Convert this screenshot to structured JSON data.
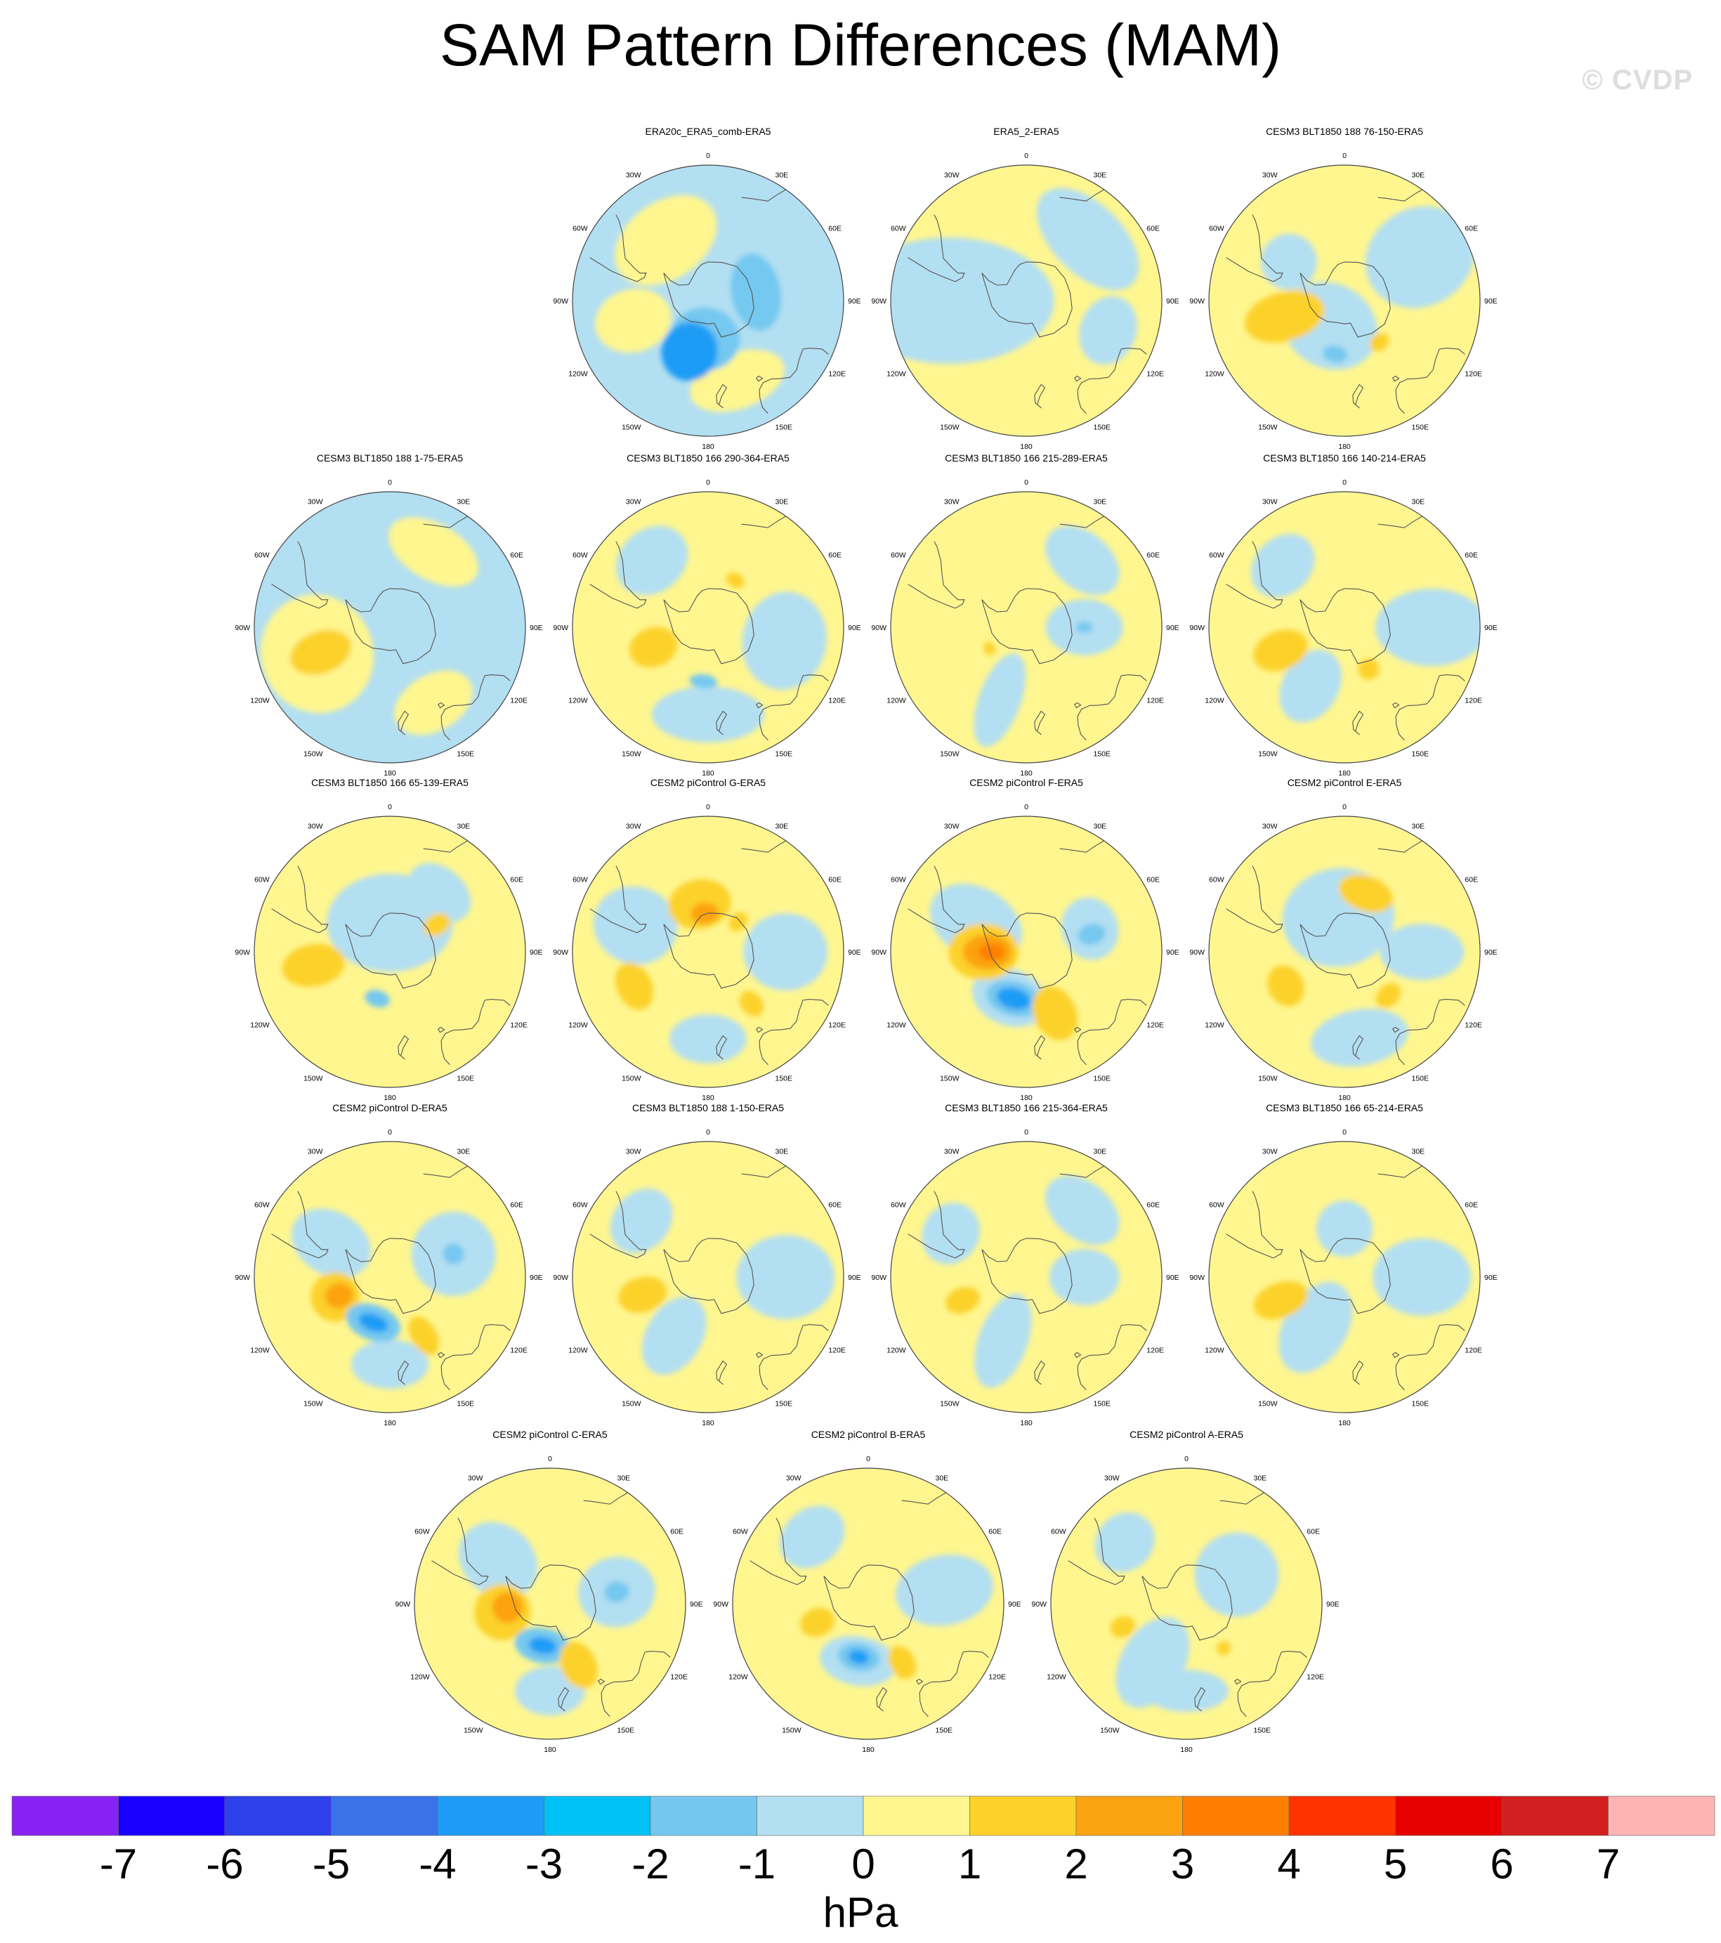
{
  "title": "SAM Pattern Differences (MAM)",
  "watermark": "© CVDP",
  "map_labels": {
    "top": "0",
    "tr1": "30E",
    "tr2": "60E",
    "right": "90E",
    "br2": "120E",
    "br1": "150E",
    "bottom": "180",
    "bl1": "150W",
    "bl2": "120W",
    "left": "90W",
    "tl2": "60W",
    "tl1": "30W"
  },
  "panels": [
    {
      "title": "ERA20c_ERA5_comb-ERA5",
      "base": "#b3dff2",
      "blobs": [
        {
          "lat": -52,
          "lon": -35,
          "rx": 80,
          "ry": 55,
          "c": "#fff68f"
        },
        {
          "lat": -50,
          "lon": -105,
          "rx": 45,
          "ry": 55,
          "c": "#fff68f"
        },
        {
          "lat": -46,
          "lon": 160,
          "rx": 70,
          "ry": 40,
          "c": "#fff68f"
        },
        {
          "lat": -70,
          "lon": -175,
          "rx": 50,
          "ry": 45,
          "c": "#74c8f0"
        },
        {
          "lat": -62,
          "lon": -160,
          "rx": 40,
          "ry": 42,
          "c": "#1e9cf5"
        },
        {
          "lat": -65,
          "lon": 80,
          "rx": 55,
          "ry": 35,
          "c": "#74c8f0"
        }
      ]
    },
    {
      "title": "ERA5_2-ERA5",
      "base": "#fff68f",
      "blobs": [
        {
          "lat": -50,
          "lon": -90,
          "rx": 90,
          "ry": 150,
          "c": "#b3dff2"
        },
        {
          "lat": -45,
          "lon": 45,
          "rx": 90,
          "ry": 50,
          "c": "#b3dff2"
        },
        {
          "lat": -45,
          "lon": 110,
          "rx": 50,
          "ry": 40,
          "c": "#b3dff2"
        }
      ]
    },
    {
      "title": "CESM3 BLT1850 188 76-150-ERA5",
      "base": "#fff68f",
      "blobs": [
        {
          "lat": -45,
          "lon": 60,
          "rx": 70,
          "ry": 80,
          "c": "#b3dff2"
        },
        {
          "lat": -75,
          "lon": -150,
          "rx": 70,
          "ry": 60,
          "c": "#b3dff2"
        },
        {
          "lat": -55,
          "lon": -55,
          "rx": 40,
          "ry": 40,
          "c": "#b3dff2"
        },
        {
          "lat": -58,
          "lon": -105,
          "rx": 35,
          "ry": 58,
          "c": "#fcd12a"
        },
        {
          "lat": -62,
          "lon": -170,
          "rx": 18,
          "ry": 12,
          "c": "#74c8f0"
        },
        {
          "lat": -62,
          "lon": 140,
          "rx": 15,
          "ry": 12,
          "c": "#fcd12a"
        }
      ]
    },
    {
      "title": "CESM3 BLT1850 188 1-75-ERA5",
      "base": "#b3dff2",
      "blobs": [
        {
          "lat": -50,
          "lon": -110,
          "rx": 85,
          "ry": 80,
          "c": "#fff68f"
        },
        {
          "lat": -45,
          "lon": 30,
          "rx": 70,
          "ry": 40,
          "c": "#fff68f"
        },
        {
          "lat": -45,
          "lon": 150,
          "rx": 60,
          "ry": 40,
          "c": "#fff68f"
        },
        {
          "lat": -52,
          "lon": -110,
          "rx": 30,
          "ry": 45,
          "c": "#fcd12a"
        }
      ]
    },
    {
      "title": "CESM3 BLT1850 166 290-364-ERA5",
      "base": "#fff68f",
      "blobs": [
        {
          "lat": -50,
          "lon": 100,
          "rx": 70,
          "ry": 60,
          "c": "#b3dff2"
        },
        {
          "lat": -45,
          "lon": 180,
          "rx": 80,
          "ry": 40,
          "c": "#b3dff2"
        },
        {
          "lat": -45,
          "lon": -40,
          "rx": 55,
          "ry": 45,
          "c": "#b3dff2"
        },
        {
          "lat": -60,
          "lon": -110,
          "rx": 28,
          "ry": 35,
          "c": "#fcd12a"
        },
        {
          "lat": -62,
          "lon": 30,
          "rx": 14,
          "ry": 10,
          "c": "#fcd12a"
        },
        {
          "lat": -62,
          "lon": -175,
          "rx": 20,
          "ry": 10,
          "c": "#74c8f0"
        }
      ]
    },
    {
      "title": "CESM3 BLT1850 166 215-289-ERA5",
      "base": "#fff68f",
      "blobs": [
        {
          "lat": -45,
          "lon": 40,
          "rx": 60,
          "ry": 40,
          "c": "#b3dff2"
        },
        {
          "lat": -60,
          "lon": 90,
          "rx": 40,
          "ry": 55,
          "c": "#b3dff2"
        },
        {
          "lat": -50,
          "lon": -160,
          "rx": 30,
          "ry": 70,
          "c": "#b3dff2"
        },
        {
          "lat": -60,
          "lon": 90,
          "rx": 8,
          "ry": 12,
          "c": "#74c8f0"
        },
        {
          "lat": -68,
          "lon": -120,
          "rx": 10,
          "ry": 8,
          "c": "#fcd12a"
        }
      ]
    },
    {
      "title": "CESM3 BLT1850 166 140-214-ERA5",
      "base": "#fff68f",
      "blobs": [
        {
          "lat": -45,
          "lon": 90,
          "rx": 55,
          "ry": 80,
          "c": "#b3dff2"
        },
        {
          "lat": -55,
          "lon": -150,
          "rx": 40,
          "ry": 55,
          "c": "#b3dff2"
        },
        {
          "lat": -45,
          "lon": -45,
          "rx": 50,
          "ry": 40,
          "c": "#b3dff2"
        },
        {
          "lat": -55,
          "lon": -110,
          "rx": 28,
          "ry": 40,
          "c": "#fcd12a"
        },
        {
          "lat": -65,
          "lon": 150,
          "rx": 15,
          "ry": 15,
          "c": "#fcd12a"
        }
      ]
    },
    {
      "title": "CESM3 BLT1850 166 65-139-ERA5",
      "base": "#fff68f",
      "blobs": [
        {
          "lat": -75,
          "lon": 0,
          "rx": 90,
          "ry": 70,
          "c": "#b3dff2"
        },
        {
          "lat": -50,
          "lon": 40,
          "rx": 50,
          "ry": 35,
          "c": "#b3dff2"
        },
        {
          "lat": -50,
          "lon": -100,
          "rx": 30,
          "ry": 45,
          "c": "#fcd12a"
        },
        {
          "lat": -62,
          "lon": 60,
          "rx": 15,
          "ry": 20,
          "c": "#fcd12a"
        },
        {
          "lat": -65,
          "lon": -165,
          "rx": 18,
          "ry": 12,
          "c": "#74c8f0"
        }
      ]
    },
    {
      "title": "CESM2 piControl G-ERA5",
      "base": "#fff68f",
      "blobs": [
        {
          "lat": -50,
          "lon": -70,
          "rx": 55,
          "ry": 60,
          "c": "#b3dff2"
        },
        {
          "lat": -50,
          "lon": 90,
          "rx": 55,
          "ry": 60,
          "c": "#b3dff2"
        },
        {
          "lat": -45,
          "lon": 180,
          "rx": 55,
          "ry": 35,
          "c": "#b3dff2"
        },
        {
          "lat": -65,
          "lon": -10,
          "rx": 45,
          "ry": 35,
          "c": "#fcd12a"
        },
        {
          "lat": -70,
          "lon": -5,
          "rx": 20,
          "ry": 15,
          "c": "#fca311"
        },
        {
          "lat": -48,
          "lon": -115,
          "rx": 35,
          "ry": 25,
          "c": "#fcd12a"
        },
        {
          "lat": -55,
          "lon": 140,
          "rx": 15,
          "ry": 20,
          "c": "#fcd12a"
        },
        {
          "lat": -68,
          "lon": 45,
          "rx": 12,
          "ry": 15,
          "c": "#fcd12a"
        }
      ]
    },
    {
      "title": "CESM2 piControl F-ERA5",
      "base": "#fff68f",
      "blobs": [
        {
          "lat": -60,
          "lon": -60,
          "rx": 50,
          "ry": 70,
          "c": "#b3dff2"
        },
        {
          "lat": -55,
          "lon": 70,
          "rx": 45,
          "ry": 40,
          "c": "#b3dff2"
        },
        {
          "lat": -65,
          "lon": -160,
          "rx": 55,
          "ry": 40,
          "c": "#b3dff2"
        },
        {
          "lat": -68,
          "lon": -90,
          "rx": 40,
          "ry": 50,
          "c": "#fcd12a"
        },
        {
          "lat": -70,
          "lon": -90,
          "rx": 25,
          "ry": 35,
          "c": "#fca311"
        },
        {
          "lat": -72,
          "lon": -90,
          "rx": 12,
          "ry": 18,
          "c": "#ff7f00"
        },
        {
          "lat": -65,
          "lon": -165,
          "rx": 40,
          "ry": 25,
          "c": "#74c8f0"
        },
        {
          "lat": -65,
          "lon": -165,
          "rx": 25,
          "ry": 15,
          "c": "#1e9cf5"
        },
        {
          "lat": -55,
          "lon": 155,
          "rx": 30,
          "ry": 40,
          "c": "#fcd12a"
        },
        {
          "lat": -55,
          "lon": 75,
          "rx": 15,
          "ry": 20,
          "c": "#74c8f0"
        }
      ]
    },
    {
      "title": "CESM2 piControl E-ERA5",
      "base": "#fff68f",
      "blobs": [
        {
          "lat": -72,
          "lon": -10,
          "rx": 80,
          "ry": 70,
          "c": "#b3dff2"
        },
        {
          "lat": -50,
          "lon": 90,
          "rx": 40,
          "ry": 60,
          "c": "#b3dff2"
        },
        {
          "lat": -45,
          "lon": 170,
          "rx": 70,
          "ry": 40,
          "c": "#b3dff2"
        },
        {
          "lat": -58,
          "lon": 20,
          "rx": 40,
          "ry": 25,
          "c": "#fcd12a"
        },
        {
          "lat": -55,
          "lon": -120,
          "rx": 30,
          "ry": 25,
          "c": "#fcd12a"
        },
        {
          "lat": -58,
          "lon": 135,
          "rx": 20,
          "ry": 15,
          "c": "#fcd12a"
        }
      ]
    },
    {
      "title": "CESM2 piControl D-ERA5",
      "base": "#fff68f",
      "blobs": [
        {
          "lat": -55,
          "lon": -60,
          "rx": 45,
          "ry": 60,
          "c": "#b3dff2"
        },
        {
          "lat": -55,
          "lon": 70,
          "rx": 60,
          "ry": 60,
          "c": "#b3dff2"
        },
        {
          "lat": -45,
          "lon": 180,
          "rx": 55,
          "ry": 35,
          "c": "#b3dff2"
        },
        {
          "lat": -60,
          "lon": -110,
          "rx": 35,
          "ry": 35,
          "c": "#fcd12a"
        },
        {
          "lat": -62,
          "lon": -110,
          "rx": 18,
          "ry": 20,
          "c": "#fca311"
        },
        {
          "lat": -65,
          "lon": -160,
          "rx": 40,
          "ry": 25,
          "c": "#74c8f0"
        },
        {
          "lat": -65,
          "lon": -160,
          "rx": 22,
          "ry": 12,
          "c": "#1e9cf5"
        },
        {
          "lat": -55,
          "lon": 150,
          "rx": 18,
          "ry": 30,
          "c": "#fcd12a"
        },
        {
          "lat": -55,
          "lon": 70,
          "rx": 15,
          "ry": 15,
          "c": "#74c8f0"
        }
      ]
    },
    {
      "title": "CESM3 BLT1850 188 1-150-ERA5",
      "base": "#fff68f",
      "blobs": [
        {
          "lat": -50,
          "lon": 90,
          "rx": 60,
          "ry": 70,
          "c": "#b3dff2"
        },
        {
          "lat": -55,
          "lon": -150,
          "rx": 40,
          "ry": 60,
          "c": "#b3dff2"
        },
        {
          "lat": -45,
          "lon": -50,
          "rx": 50,
          "ry": 40,
          "c": "#b3dff2"
        },
        {
          "lat": -55,
          "lon": -105,
          "rx": 25,
          "ry": 35,
          "c": "#fcd12a"
        }
      ]
    },
    {
      "title": "CESM3 BLT1850 166 215-364-ERA5",
      "base": "#fff68f",
      "blobs": [
        {
          "lat": -45,
          "lon": 40,
          "rx": 60,
          "ry": 40,
          "c": "#b3dff2"
        },
        {
          "lat": -60,
          "lon": 90,
          "rx": 40,
          "ry": 50,
          "c": "#b3dff2"
        },
        {
          "lat": -55,
          "lon": -160,
          "rx": 35,
          "ry": 70,
          "c": "#b3dff2"
        },
        {
          "lat": -45,
          "lon": -60,
          "rx": 45,
          "ry": 40,
          "c": "#b3dff2"
        },
        {
          "lat": -55,
          "lon": -110,
          "rx": 18,
          "ry": 25,
          "c": "#fcd12a"
        }
      ]
    },
    {
      "title": "CESM3 BLT1850 166 65-214-ERA5",
      "base": "#fff68f",
      "blobs": [
        {
          "lat": -50,
          "lon": 90,
          "rx": 55,
          "ry": 70,
          "c": "#b3dff2"
        },
        {
          "lat": -60,
          "lon": -150,
          "rx": 45,
          "ry": 70,
          "c": "#b3dff2"
        },
        {
          "lat": -65,
          "lon": 0,
          "rx": 40,
          "ry": 40,
          "c": "#b3dff2"
        },
        {
          "lat": -55,
          "lon": -110,
          "rx": 25,
          "ry": 40,
          "c": "#fcd12a"
        }
      ]
    },
    {
      "title": "CESM2 piControl C-ERA5",
      "base": "#fff68f",
      "blobs": [
        {
          "lat": -55,
          "lon": -50,
          "rx": 50,
          "ry": 60,
          "c": "#b3dff2"
        },
        {
          "lat": -55,
          "lon": 80,
          "rx": 50,
          "ry": 55,
          "c": "#b3dff2"
        },
        {
          "lat": -45,
          "lon": 180,
          "rx": 50,
          "ry": 35,
          "c": "#b3dff2"
        },
        {
          "lat": -65,
          "lon": -100,
          "rx": 40,
          "ry": 40,
          "c": "#fcd12a"
        },
        {
          "lat": -68,
          "lon": -95,
          "rx": 22,
          "ry": 22,
          "c": "#fca311"
        },
        {
          "lat": -68,
          "lon": -170,
          "rx": 40,
          "ry": 25,
          "c": "#74c8f0"
        },
        {
          "lat": -68,
          "lon": -170,
          "rx": 20,
          "ry": 12,
          "c": "#1e9cf5"
        },
        {
          "lat": -55,
          "lon": 155,
          "rx": 25,
          "ry": 35,
          "c": "#fcd12a"
        },
        {
          "lat": -55,
          "lon": 80,
          "rx": 15,
          "ry": 18,
          "c": "#74c8f0"
        }
      ]
    },
    {
      "title": "CESM2 piControl B-ERA5",
      "base": "#fff68f",
      "blobs": [
        {
          "lat": -60,
          "lon": -170,
          "rx": 55,
          "ry": 35,
          "c": "#b3dff2"
        },
        {
          "lat": -50,
          "lon": 80,
          "rx": 50,
          "ry": 70,
          "c": "#b3dff2"
        },
        {
          "lat": -45,
          "lon": -40,
          "rx": 50,
          "ry": 40,
          "c": "#b3dff2"
        },
        {
          "lat": -62,
          "lon": -170,
          "rx": 30,
          "ry": 20,
          "c": "#74c8f0"
        },
        {
          "lat": -62,
          "lon": -170,
          "rx": 15,
          "ry": 10,
          "c": "#1e9cf5"
        },
        {
          "lat": -62,
          "lon": -110,
          "rx": 20,
          "ry": 25,
          "c": "#fcd12a"
        },
        {
          "lat": -55,
          "lon": 150,
          "rx": 18,
          "ry": 25,
          "c": "#fcd12a"
        }
      ]
    },
    {
      "title": "CESM2 piControl A-ERA5",
      "base": "#fff68f",
      "blobs": [
        {
          "lat": -60,
          "lon": 60,
          "rx": 60,
          "ry": 60,
          "c": "#b3dff2"
        },
        {
          "lat": -55,
          "lon": -150,
          "rx": 45,
          "ry": 70,
          "c": "#b3dff2"
        },
        {
          "lat": -45,
          "lon": 180,
          "rx": 60,
          "ry": 30,
          "c": "#b3dff2"
        },
        {
          "lat": -45,
          "lon": -45,
          "rx": 45,
          "ry": 40,
          "c": "#b3dff2"
        },
        {
          "lat": -55,
          "lon": -110,
          "rx": 15,
          "ry": 18,
          "c": "#fcd12a"
        },
        {
          "lat": -60,
          "lon": 140,
          "rx": 10,
          "ry": 10,
          "c": "#fcd12a"
        }
      ]
    }
  ],
  "colorbar": {
    "colors": [
      "#8722f2",
      "#1a00ff",
      "#2e40ea",
      "#3a72ea",
      "#1e9cf5",
      "#00c1f5",
      "#74c8f0",
      "#b3dff2",
      "#fff68f",
      "#fcd12a",
      "#fca311",
      "#ff7f00",
      "#ff3300",
      "#e60000",
      "#d11f1f",
      "#ffb3b3"
    ],
    "ticks": [
      "-7",
      "-6",
      "-5",
      "-4",
      "-3",
      "-2",
      "-1",
      "0",
      "1",
      "2",
      "3",
      "4",
      "5",
      "6",
      "7"
    ],
    "units": "hPa"
  }
}
